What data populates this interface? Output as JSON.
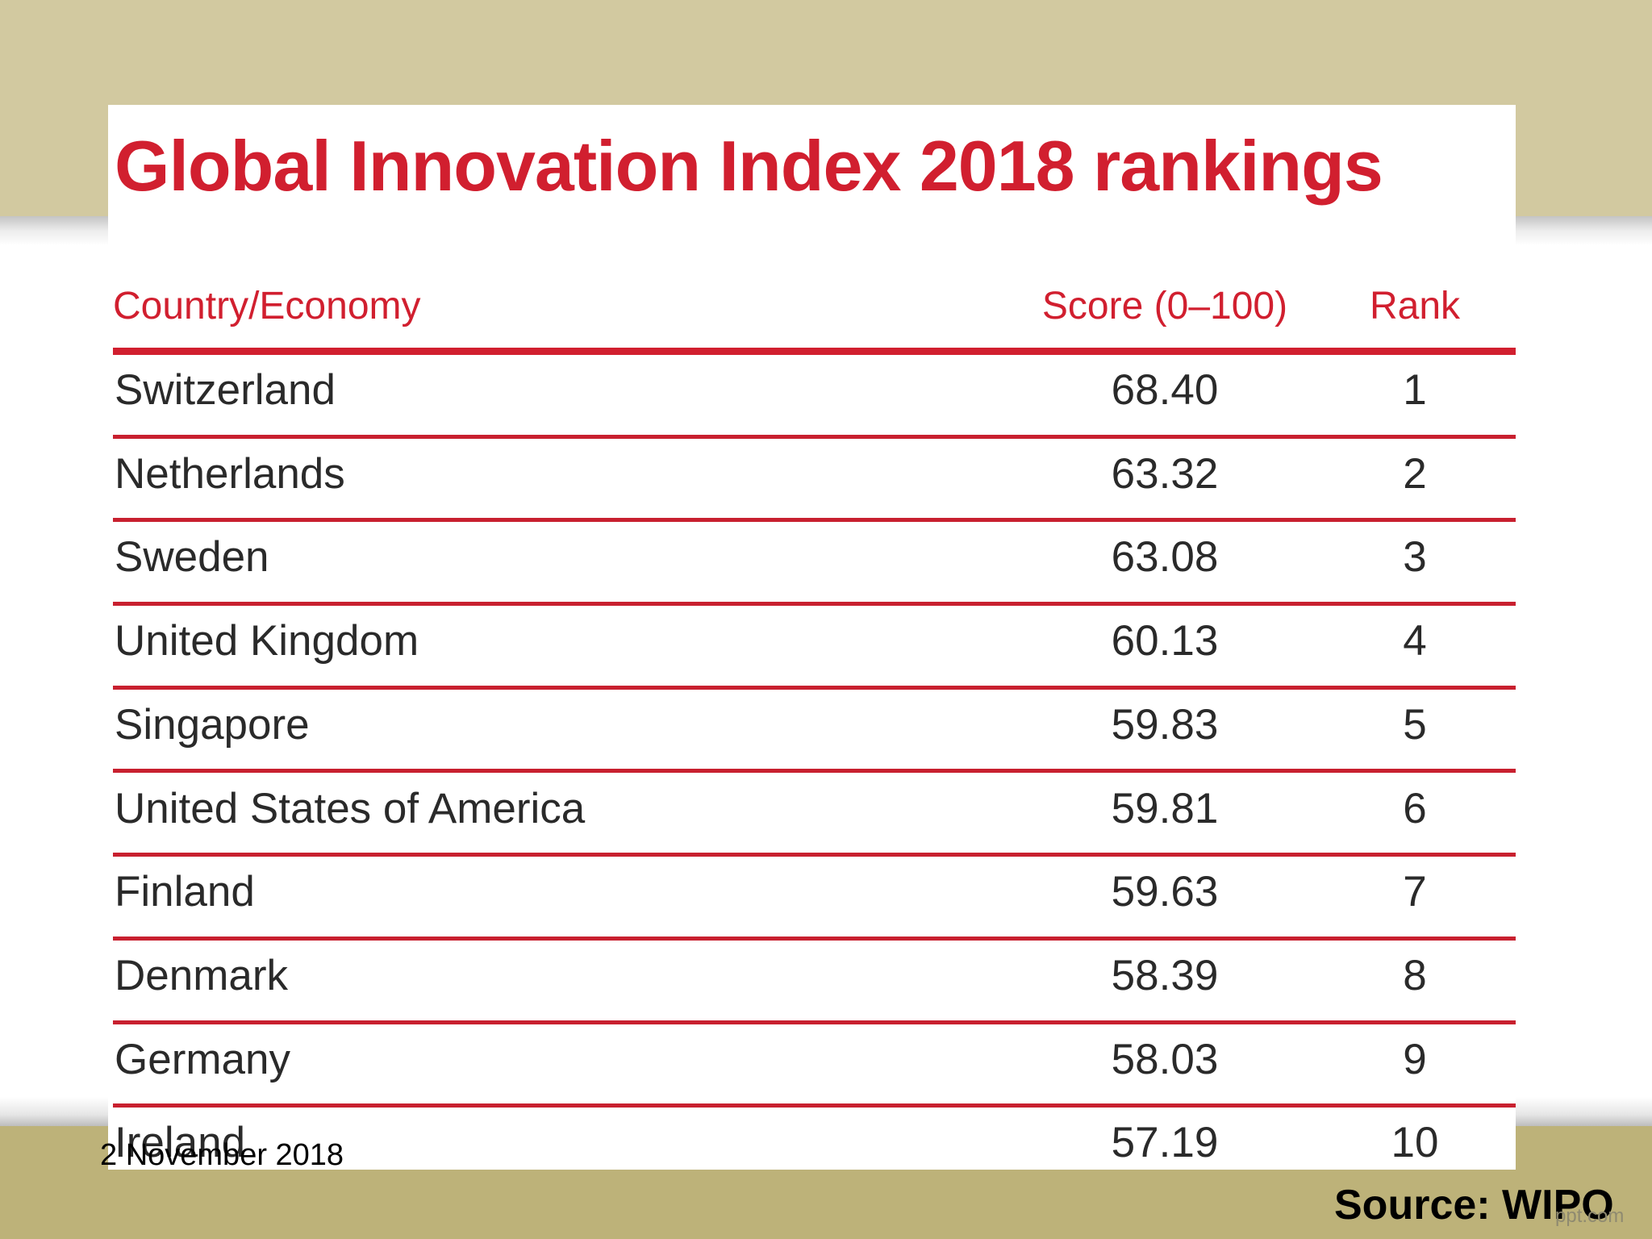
{
  "slide": {
    "date": "2 November 2018",
    "source": "Source: WIPO",
    "watermark": "ppt.com",
    "colors": {
      "accent": "#d11f2f",
      "band_top": "#d2c9a0",
      "band_bottom": "#bdb279",
      "text": "#2a2a2a"
    }
  },
  "chart_data": {
    "type": "table",
    "title": "Global Innovation Index 2018 rankings",
    "columns": [
      "Country/Economy",
      "Score (0–100)",
      "Rank"
    ],
    "rows": [
      {
        "country": "Switzerland",
        "score": "68.40",
        "rank": "1"
      },
      {
        "country": "Netherlands",
        "score": "63.32",
        "rank": "2"
      },
      {
        "country": "Sweden",
        "score": "63.08",
        "rank": "3"
      },
      {
        "country": "United Kingdom",
        "score": "60.13",
        "rank": "4"
      },
      {
        "country": "Singapore",
        "score": "59.83",
        "rank": "5"
      },
      {
        "country": "United States of America",
        "score": "59.81",
        "rank": "6"
      },
      {
        "country": "Finland",
        "score": "59.63",
        "rank": "7"
      },
      {
        "country": "Denmark",
        "score": "58.39",
        "rank": "8"
      },
      {
        "country": "Germany",
        "score": "58.03",
        "rank": "9"
      },
      {
        "country": "Ireland",
        "score": "57.19",
        "rank": "10"
      }
    ]
  }
}
